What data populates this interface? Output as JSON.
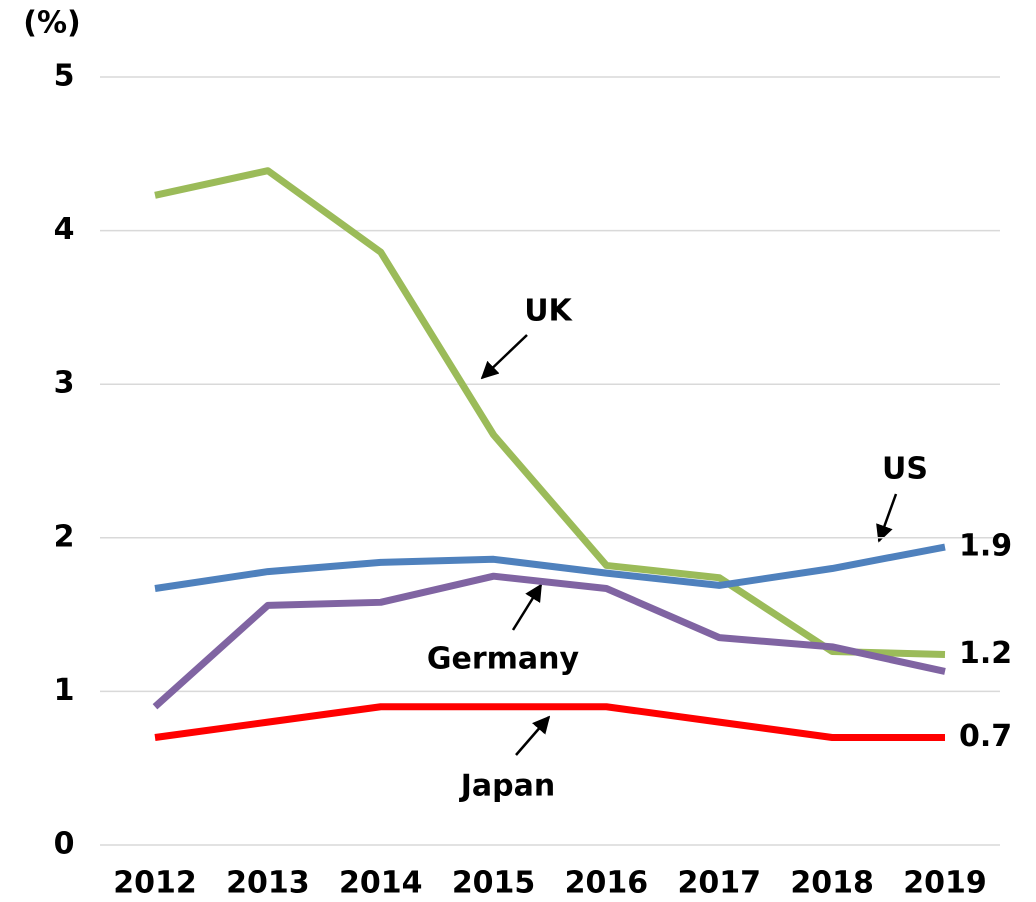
{
  "chart_data": {
    "type": "line",
    "y_label": "(%)",
    "categories": [
      "2012",
      "2013",
      "2014",
      "2015",
      "2016",
      "2017",
      "2018",
      "2019"
    ],
    "series": [
      {
        "name": "UK",
        "color": "#9bbb59",
        "values": [
          4.23,
          4.39,
          3.86,
          2.67,
          1.82,
          1.74,
          1.26,
          1.24
        ],
        "value_labels": [
          null,
          null,
          null,
          null,
          null,
          null,
          null,
          "1.2"
        ]
      },
      {
        "name": "US",
        "color": "#4f81bd",
        "values": [
          1.67,
          1.78,
          1.84,
          1.86,
          1.77,
          1.69,
          1.8,
          1.94
        ],
        "value_labels": [
          null,
          null,
          null,
          null,
          null,
          null,
          null,
          "1.9"
        ]
      },
      {
        "name": "Germany",
        "color": "#8064a2",
        "values": [
          0.9,
          1.56,
          1.58,
          1.75,
          1.67,
          1.35,
          1.29,
          1.13
        ]
      },
      {
        "name": "Japan",
        "color": "#ff0000",
        "values": [
          0.7,
          0.8,
          0.9,
          0.9,
          0.9,
          0.8,
          0.7,
          0.7
        ],
        "value_labels": [
          null,
          null,
          null,
          null,
          null,
          null,
          null,
          "0.7"
        ]
      }
    ],
    "ylim": [
      0,
      5
    ],
    "yticks": [
      0,
      1,
      2,
      3,
      4,
      5
    ],
    "grid": true
  }
}
